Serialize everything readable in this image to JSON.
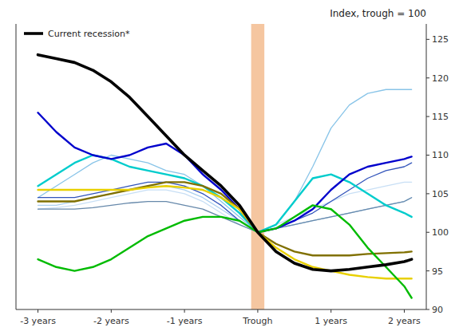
{
  "chart_data": {
    "type": "line",
    "title": "Index, trough = 100",
    "x": [
      -3,
      -2.75,
      -2.5,
      -2.25,
      -2.0,
      -1.75,
      -1.5,
      -1.25,
      -1.0,
      -0.75,
      -0.5,
      -0.25,
      0,
      0.25,
      0.5,
      0.75,
      1.0,
      1.25,
      1.5,
      1.75,
      2.0,
      2.1
    ],
    "xlim": [
      -3.3,
      2.3
    ],
    "xticks": [
      {
        "value": -3,
        "label": "-3 years"
      },
      {
        "value": -2,
        "label": "-2 years"
      },
      {
        "value": -1,
        "label": "-1 years"
      },
      {
        "value": 0,
        "label": "Trough"
      },
      {
        "value": 1,
        "label": "1 years"
      },
      {
        "value": 2,
        "label": "2 years"
      }
    ],
    "ylim": [
      90,
      127
    ],
    "yticks": [
      90,
      95,
      100,
      105,
      110,
      115,
      120,
      125
    ],
    "grid": false,
    "legend": "upper left",
    "bands": [
      {
        "x0": -0.09,
        "x1": 0.09,
        "color": "#f5c6a0"
      }
    ],
    "series": [
      {
        "color": "#88c4e8",
        "values": [
          104.5,
          106,
          107.5,
          109,
          110,
          109.5,
          109,
          108,
          107.5,
          106,
          104,
          102,
          100,
          101,
          104,
          108.5,
          113.5,
          116.5,
          118,
          118.5,
          118.5,
          118.5
        ]
      },
      {
        "color": "#aad0f0",
        "values": [
          103.5,
          103.5,
          104,
          104.5,
          105,
          105.5,
          106,
          106,
          105.5,
          104.5,
          103,
          101.5,
          100,
          100.5,
          101,
          101.5,
          102,
          102.5,
          103,
          103.5,
          104,
          104.5
        ]
      },
      {
        "color": "#c8dff5",
        "values": [
          103,
          103.2,
          103.5,
          104,
          104.5,
          105,
          105.5,
          105.5,
          105,
          104,
          102.5,
          101,
          100,
          101,
          102,
          103,
          104,
          105,
          105.5,
          106,
          106.5,
          106.5
        ]
      },
      {
        "color": "#3355bb",
        "values": [
          104.5,
          104.5,
          104.5,
          105,
          105.5,
          106,
          106.5,
          106.5,
          106,
          105,
          103.5,
          101.5,
          100,
          100.5,
          101.5,
          102.5,
          104,
          105.5,
          107,
          108,
          108.5,
          109
        ]
      },
      {
        "color": "#6688aa",
        "values": [
          103,
          103,
          103,
          103.2,
          103.5,
          103.8,
          104,
          104,
          103.5,
          103,
          102,
          101,
          100,
          100.5,
          101,
          101.5,
          102,
          102.5,
          103,
          103.5,
          104,
          104.5
        ]
      },
      {
        "color": "#00cccc",
        "values": [
          106,
          107.5,
          109,
          110,
          109.5,
          108.5,
          108,
          107.5,
          107,
          106,
          104.5,
          102.5,
          100,
          101,
          104,
          107,
          107.5,
          106.5,
          105,
          103.5,
          102.5,
          102
        ]
      },
      {
        "color": "#0000cc",
        "values": [
          115.5,
          113,
          111,
          110,
          109.5,
          110,
          111,
          111.5,
          110,
          107.5,
          105.5,
          103,
          100,
          100.5,
          101.5,
          103,
          105.5,
          107.5,
          108.5,
          109,
          109.5,
          109.8
        ]
      },
      {
        "color": "#807000",
        "values": [
          104,
          104,
          104,
          104.5,
          105,
          105.5,
          106,
          106.5,
          106.5,
          106,
          105,
          103,
          100,
          98.5,
          97.5,
          97.0,
          97.0,
          97.0,
          97.2,
          97.3,
          97.4,
          97.5
        ]
      },
      {
        "color": "#e8d000",
        "values": [
          105.5,
          105.5,
          105.5,
          105.5,
          105.5,
          105.5,
          105.8,
          106,
          105.8,
          105.5,
          104.5,
          103,
          100,
          98,
          96.5,
          95.5,
          95,
          94.5,
          94.2,
          94.0,
          94.0,
          94.0
        ]
      },
      {
        "color": "#00bb00",
        "values": [
          96.5,
          95.5,
          95,
          95.5,
          96.5,
          98,
          99.5,
          100.5,
          101.5,
          102,
          102,
          101.5,
          100,
          100.5,
          102,
          103.5,
          103,
          101,
          98,
          95.5,
          93,
          91.5
        ]
      },
      {
        "name": "Current recession*",
        "color": "#000000",
        "values": [
          123,
          122.5,
          122,
          121,
          119.5,
          117.5,
          115,
          112.5,
          110,
          108,
          106,
          103.5,
          100,
          97.5,
          96,
          95.2,
          95,
          95.2,
          95.5,
          95.8,
          96.2,
          96.5
        ]
      }
    ]
  }
}
